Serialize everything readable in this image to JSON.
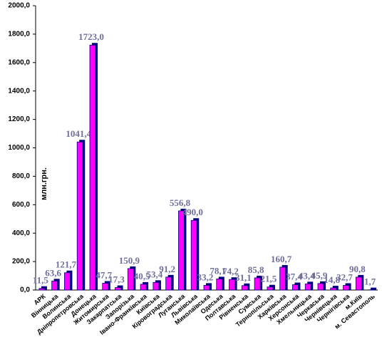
{
  "chart_data": {
    "type": "bar",
    "y_label": "млн.грн.",
    "categories": [
      "АРК",
      "Вінницька",
      "Волинська",
      "Дніпропетровська",
      "Донецька",
      "Житомирська",
      "Закарпатська",
      "Запорізька",
      "Івано-Франківська",
      "Київська",
      "Кіровоградська",
      "Луганська",
      "Львівська",
      "Миколаївська",
      "Одеська",
      "Полтавська",
      "Рівненська",
      "Сумська",
      "Тернопільська",
      "Харківська",
      "Херсонська",
      "Хмельницька",
      "Черкаська",
      "Чернівецька",
      "Чернігівська",
      "м.Київ",
      "м. Севастополь"
    ],
    "values": [
      11.5,
      63.6,
      121.7,
      1041.4,
      1723.0,
      47.7,
      17.3,
      150.9,
      40.5,
      53.4,
      91.2,
      556.8,
      490.0,
      33.2,
      78.1,
      74.2,
      31.1,
      85.8,
      21.5,
      160.7,
      37.4,
      43.4,
      45.9,
      14.8,
      32.7,
      90.8,
      1.7
    ],
    "value_labels": [
      "11,5",
      "63,6",
      "121,7",
      "1041,4",
      "1723,0",
      "47,7",
      "17,3",
      "150,9",
      "40,5",
      "53,4",
      "91,2",
      "556,8",
      "490,0",
      "33,2",
      "78,1",
      "74,2",
      "31,1",
      "85,8",
      "21,5",
      "160,7",
      "37,4",
      "43,4",
      "45,9",
      "14,8",
      "32,7",
      "90,8",
      "1,7"
    ],
    "color": "#ff00ff",
    "shadow_color": "#000080",
    "ylim": [
      0,
      2000
    ],
    "yticks": [
      {
        "value": 0,
        "label": "0,0"
      },
      {
        "value": 200,
        "label": "200,0"
      },
      {
        "value": 400,
        "label": "400,0"
      },
      {
        "value": 600,
        "label": "600,0"
      },
      {
        "value": 800,
        "label": "800,0"
      },
      {
        "value": 1000,
        "label": "1000,0"
      },
      {
        "value": 1200,
        "label": "1200,0"
      },
      {
        "value": 1400,
        "label": "1400,0"
      },
      {
        "value": 1600,
        "label": "1600,0"
      },
      {
        "value": 1800,
        "label": "1800,0"
      },
      {
        "value": 2000,
        "label": "2000,0"
      }
    ],
    "grid": false
  }
}
